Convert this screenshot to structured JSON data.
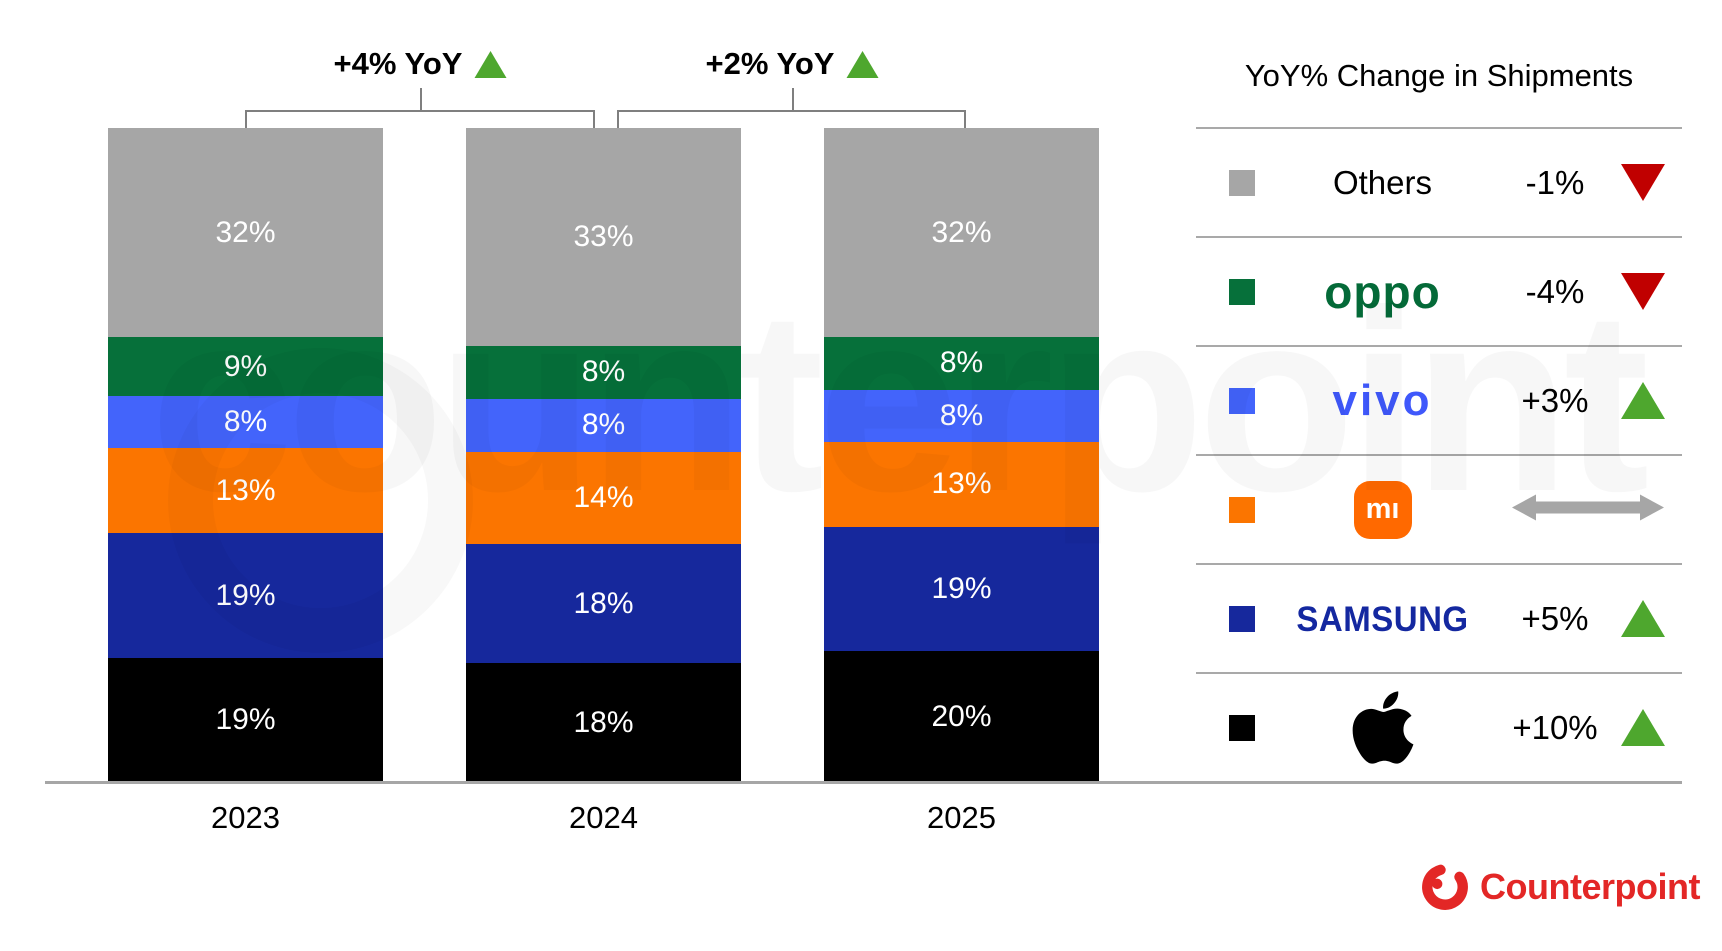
{
  "chart_data": {
    "type": "bar",
    "stacked": true,
    "orientation": "vertical",
    "categories": [
      "2023",
      "2024",
      "2025"
    ],
    "series": [
      {
        "name": "Apple",
        "color": "#000000",
        "values": [
          19,
          18,
          20
        ]
      },
      {
        "name": "Samsung",
        "color": "#16289c",
        "values": [
          19,
          18,
          19
        ]
      },
      {
        "name": "Xiaomi",
        "color": "#fb7500",
        "values": [
          13,
          14,
          13
        ]
      },
      {
        "name": "vivo",
        "color": "#4364fb",
        "values": [
          8,
          8,
          8
        ]
      },
      {
        "name": "OPPO",
        "color": "#06703a",
        "values": [
          9,
          8,
          8
        ]
      },
      {
        "name": "Others",
        "color": "#a6a6a6",
        "values": [
          32,
          33,
          32
        ]
      }
    ],
    "value_suffix": "%",
    "ylim": [
      0,
      100
    ],
    "grid": false,
    "annotations": [
      {
        "label": "+4% YoY",
        "direction": "up",
        "from": "2023",
        "to": "2024"
      },
      {
        "label": "+2% YoY",
        "direction": "up",
        "from": "2024",
        "to": "2025"
      }
    ]
  },
  "legend": {
    "title": "YoY% Change in Shipments",
    "position": "right",
    "rows": [
      {
        "brand": "Others",
        "wordmark": "Others",
        "brand_color": "#000000",
        "swatch": "#a6a6a6",
        "change": "-1%",
        "direction": "down"
      },
      {
        "brand": "OPPO",
        "wordmark": "oppo",
        "brand_color": "#046a38",
        "swatch": "#06703a",
        "change": "-4%",
        "direction": "down"
      },
      {
        "brand": "vivo",
        "wordmark": "vivo",
        "brand_color": "#3f58fb",
        "swatch": "#4364fb",
        "change": "+3%",
        "direction": "up"
      },
      {
        "brand": "Xiaomi",
        "wordmark": "mı",
        "brand_color": "#ff6900",
        "swatch": "#fb7500",
        "change": "",
        "direction": "flat"
      },
      {
        "brand": "Samsung",
        "wordmark": "SAMSUNG",
        "brand_color": "#1428a0",
        "swatch": "#16289c",
        "change": "+5%",
        "direction": "up"
      },
      {
        "brand": "Apple",
        "wordmark": "",
        "brand_color": "#000000",
        "swatch": "#000000",
        "change": "+10%",
        "direction": "up"
      }
    ]
  },
  "branding": {
    "logo_text": "Counterpoint",
    "logo_color": "#e32726"
  },
  "watermark": {
    "text": "counterpoint"
  },
  "colors": {
    "axis_line": "#a6a6a6",
    "bracket": "#7f7f7f",
    "up_green": "#4ea72e",
    "down_red": "#c00000",
    "flat_gray": "#a6a6a6"
  }
}
